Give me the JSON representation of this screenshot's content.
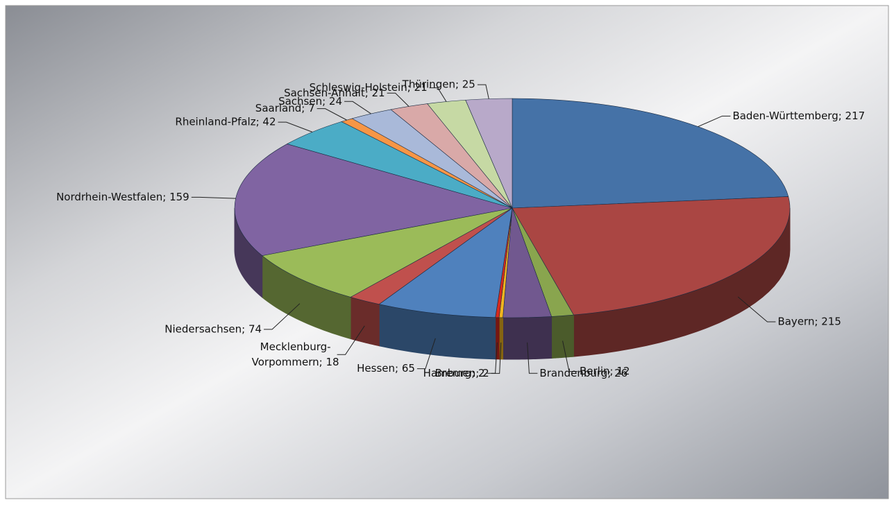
{
  "chart_data": {
    "type": "pie3d",
    "values": [
      217,
      215,
      12,
      26,
      2,
      2,
      65,
      18,
      74,
      159,
      42,
      7,
      24,
      21,
      21,
      25
    ],
    "value_labels": [
      "Baden-Württemberg; 217",
      "Bayern; 215",
      "Berlin; 12",
      "Brandenburg; 26",
      "Bremen; 2",
      "Hamburg; 2",
      "Hessen; 65",
      "Mecklenburg-Vorpommern; 18",
      "Niedersachsen; 74",
      "Nordrhein-Westfalen; 159",
      "Rheinland-Pfalz; 42",
      "Saarland; 7",
      "Sachsen; 24",
      "Sachsen-Anhalt; 21",
      "Schleswig-Holstein; 21",
      "Thüringen; 25"
    ],
    "colors": [
      "#4572a7",
      "#aa4643",
      "#89a54e",
      "#71588f",
      "#f2b51f",
      "#d62a1e",
      "#4f81bd",
      "#c0504d",
      "#9bbb59",
      "#8064a2",
      "#4bacc6",
      "#f79646",
      "#a9b9d9",
      "#d9a9a8",
      "#c6d9a4",
      "#b8a9c9"
    ]
  }
}
